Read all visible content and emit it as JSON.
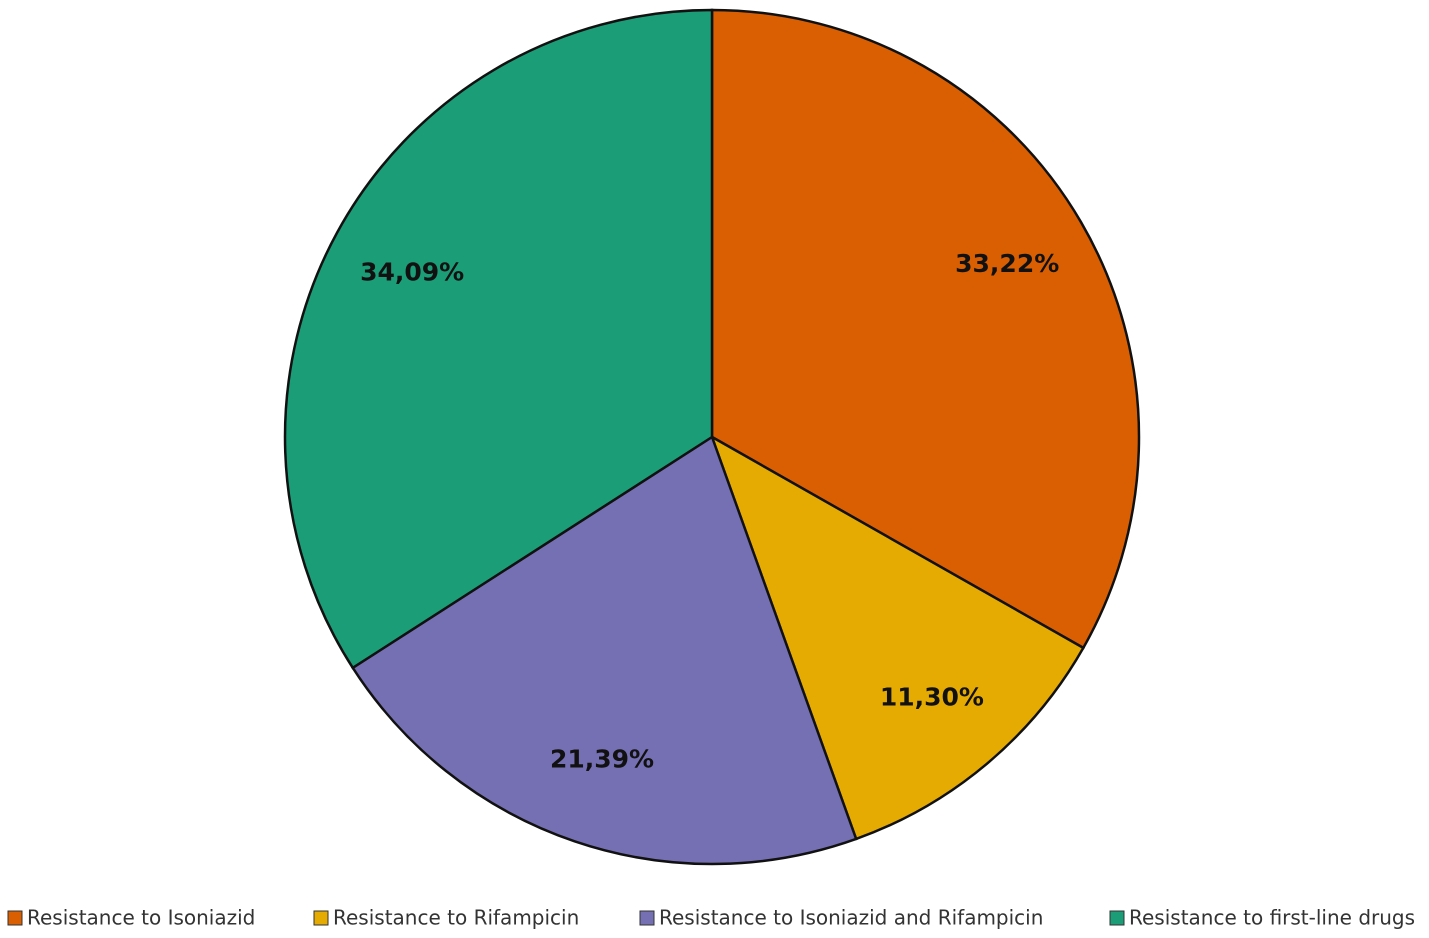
{
  "chart_data": {
    "type": "pie",
    "categories": [
      "Resistance to Isoniazid",
      "Resistance to Rifampicin",
      "Resistance to Isoniazid and Rifampicin",
      "Resistance to first-line drugs"
    ],
    "values": [
      33.22,
      11.3,
      21.39,
      34.09
    ],
    "value_labels": [
      "33,22%",
      "11,30%",
      "21,39%",
      "34,09%"
    ],
    "colors": [
      "#d95f02",
      "#e6ab02",
      "#7570b3",
      "#1b9e77"
    ],
    "legend": "bottom"
  }
}
